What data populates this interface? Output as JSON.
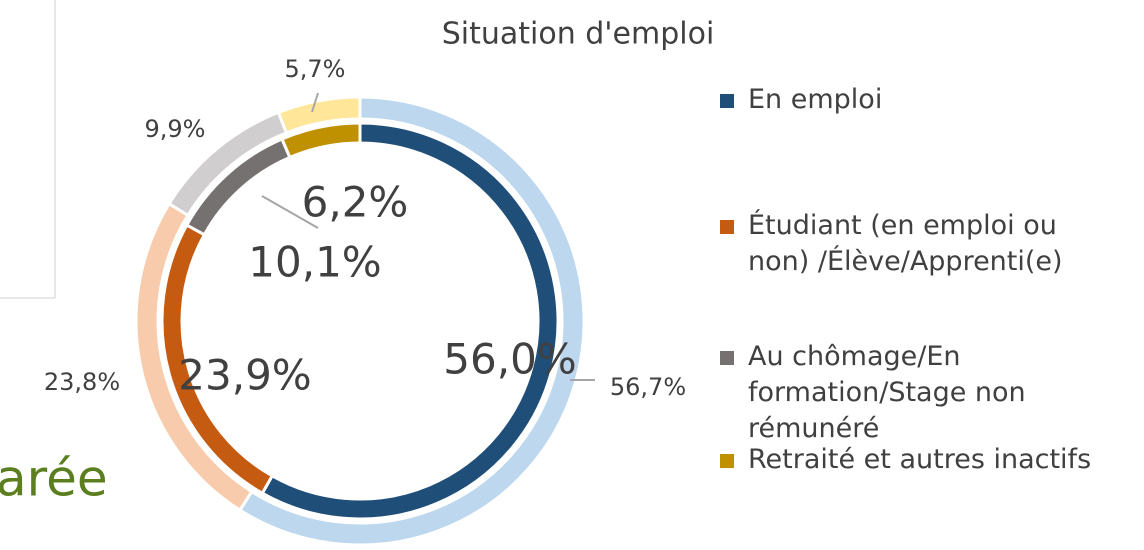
{
  "chart_data": {
    "type": "doughnut",
    "title": "Situation d'emploi",
    "categories": [
      "En emploi",
      "Étudiant (en emploi ou non) /Élève/Apprenti(e)",
      "Au chômage/En formation/Stage non rémunéré",
      "Retraité et autres inactifs"
    ],
    "series": [
      {
        "colors": [
          "#1f4e79",
          "#c55a11",
          "#767171",
          "#bf9000"
        ],
        "values": [
          56.0,
          23.9,
          10.1,
          6.2
        ],
        "value_labels": [
          "56,0%",
          "23,9%",
          "10,1%",
          "6,2%"
        ]
      },
      {
        "colors": [
          "#bdd7ee",
          "#f8cbad",
          "#d0cece",
          "#ffe699"
        ],
        "values": [
          56.7,
          23.8,
          9.9,
          5.7
        ],
        "value_labels": [
          "56,7%",
          "23,8%",
          "9,9%",
          "5,7%"
        ]
      }
    ],
    "legend": "right"
  },
  "background_text": "arée"
}
